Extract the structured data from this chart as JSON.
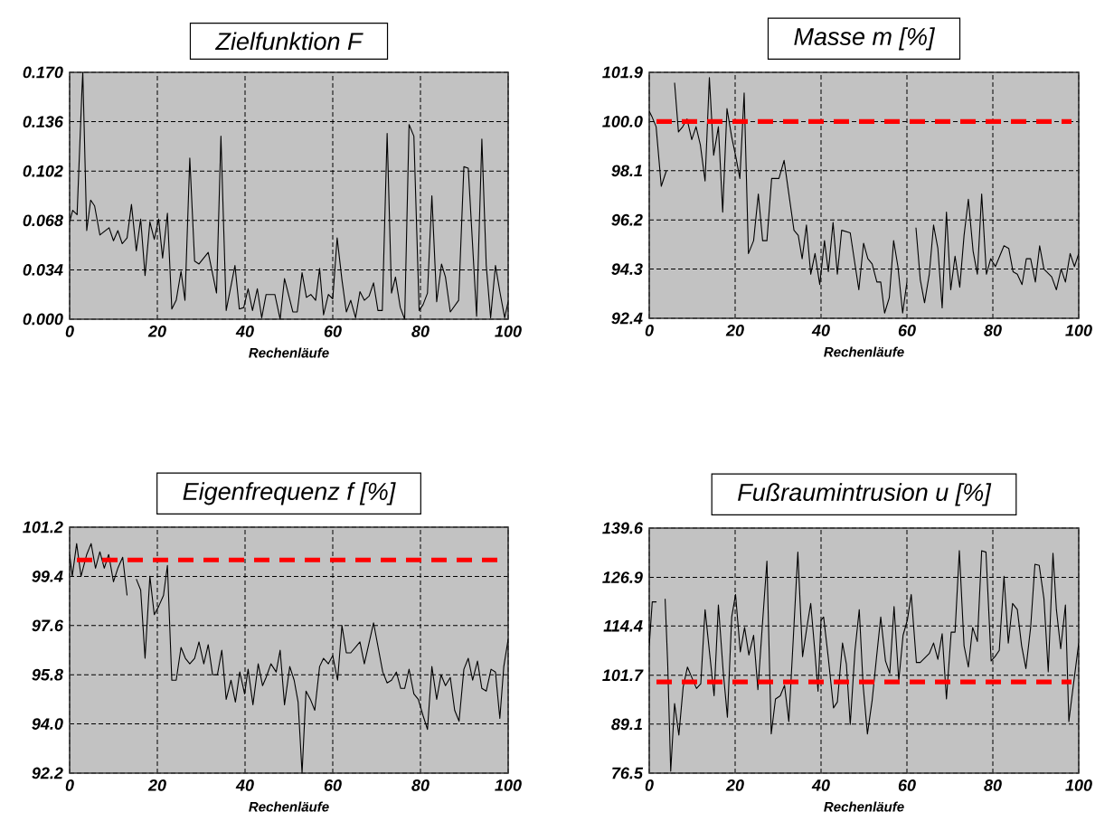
{
  "chart_data": [
    {
      "type": "line",
      "title": "Zielfunktion F",
      "xlabel": "Rechenläufe",
      "xlim": [
        0,
        100
      ],
      "xticks": [
        0,
        20,
        40,
        60,
        80,
        100
      ],
      "ylim": [
        0,
        0.17
      ],
      "yticks": [
        {
          "value": 0,
          "label": "0.000"
        },
        {
          "value": 0.034,
          "label": "0.034"
        },
        {
          "value": 0.068,
          "label": "0.068"
        },
        {
          "value": 0.102,
          "label": "0.102"
        },
        {
          "value": 0.136,
          "label": "0.136"
        },
        {
          "value": 0.17,
          "label": "0.170"
        }
      ],
      "grid": true,
      "marker": "none",
      "x": [
        0,
        0.7,
        1.7,
        2.8,
        3,
        3.3,
        3.9,
        4.8,
        5.7,
        6.9,
        9,
        10,
        11,
        12,
        13.1,
        14.1,
        15.2,
        16.2,
        17.2,
        18.3,
        19.3,
        20.3,
        21.2,
        22.3,
        23.3,
        24.3,
        25.4,
        26.3,
        27.4,
        28.5,
        29.5,
        31.6,
        33.5,
        34.5,
        35.7,
        37.7,
        38.7,
        39.7,
        40.7,
        41.7,
        42.8,
        43.8,
        44.8,
        46.8,
        48,
        49,
        50.9,
        51.9,
        53,
        54,
        55,
        56.1,
        57,
        57.9,
        59,
        60,
        61,
        62.1,
        63.1,
        64.1,
        65.2,
        66.2,
        67.2,
        68.3,
        69.3,
        70.3,
        71.3,
        72.4,
        73.4,
        74.3,
        75.4,
        76.4,
        77.4,
        78.5,
        79.7,
        80.6,
        81.6,
        82.6,
        83.7,
        84.8,
        85.7,
        86.8,
        88.7,
        89.9,
        90.9,
        92.8,
        94,
        95,
        96,
        97.1,
        98.1,
        99.2,
        100
      ],
      "series": [
        {
          "color": "#000000",
          "values": [
            0.067,
            0.075,
            0.072,
            0.157,
            0.17,
            0.134,
            0.061,
            0.082,
            0.078,
            0.058,
            0.063,
            0.054,
            0.061,
            0.052,
            0.056,
            0.079,
            0.047,
            0.069,
            0.03,
            0.067,
            0.055,
            0.069,
            0.042,
            0.073,
            0.007,
            0.013,
            0.033,
            0.013,
            0.111,
            0.04,
            0.038,
            0.046,
            0.018,
            0.126,
            0.006,
            0.037,
            0.007,
            0.008,
            0.021,
            0.006,
            0.021,
            0.001,
            0.017,
            0.017,
            0.0,
            0.028,
            0.005,
            0.005,
            0.032,
            0.015,
            0.017,
            0.013,
            0.035,
            0.003,
            0.017,
            0.014,
            0.056,
            0.027,
            0.005,
            0.013,
            0.001,
            0.019,
            0.013,
            0.016,
            0.025,
            0.006,
            0.006,
            0.128,
            0.018,
            0.029,
            0.008,
            0.0,
            0.134,
            0.126,
            0.006,
            0.01,
            0.018,
            0.085,
            0.012,
            0.038,
            0.029,
            0.005,
            0.013,
            0.105,
            0.104,
            0.002,
            0.124,
            0.037,
            0.001,
            0.037,
            0.019,
            0.001,
            0.012
          ]
        }
      ]
    },
    {
      "type": "line",
      "title": "Masse m [%]",
      "xlabel": "Rechenläufe",
      "xlim": [
        0,
        100
      ],
      "xticks": [
        0,
        20,
        40,
        60,
        80,
        100
      ],
      "ylim": [
        92.4,
        101.9
      ],
      "yticks": [
        {
          "value": 92.4,
          "label": "92.4"
        },
        {
          "value": 94.3,
          "label": "94.3"
        },
        {
          "value": 96.2,
          "label": "96.2"
        },
        {
          "value": 98.1,
          "label": "98.1"
        },
        {
          "value": 100,
          "label": "100.0"
        },
        {
          "value": 101.9,
          "label": "101.9"
        }
      ],
      "grid": true,
      "marker": "none",
      "ref_lines": [
        {
          "axis": "y",
          "value": 100,
          "color": "#ff0000",
          "line_style": "dashed"
        }
      ],
      "x": [
        0,
        0.6,
        1.6,
        2.8,
        4,
        5,
        5.9,
        6.8,
        7.8,
        8.8,
        9.9,
        10.9,
        11.9,
        13,
        14,
        15,
        16.1,
        17.1,
        18.1,
        19.2,
        20.2,
        21.1,
        22.1,
        23.1,
        24.3,
        25.4,
        26.4,
        27.4,
        28.5,
        30.2,
        31.4,
        33.7,
        34.7,
        35.6,
        36.6,
        37.6,
        38.6,
        39.7,
        40.8,
        41.7,
        42.8,
        43.8,
        44.8,
        46.8,
        48.8,
        49.9,
        50.9,
        51.9,
        53,
        53.9,
        54.8,
        55.9,
        56.9,
        57.9,
        59,
        60,
        61,
        62.1,
        63.1,
        64.1,
        65.2,
        66.2,
        67.2,
        68.2,
        69.2,
        70.2,
        71.2,
        72.3,
        73.3,
        74.3,
        75.4,
        76.4,
        77.4,
        78.5,
        79.5,
        80.6,
        82.6,
        83.7,
        84.7,
        85.7,
        86.8,
        87.8,
        88.8,
        89.9,
        90.9,
        91.9,
        93.7,
        94.8,
        95.9,
        96.9,
        98,
        99,
        100
      ],
      "series": [
        {
          "color": "#000000",
          "values": [
            100.4,
            100.2,
            99.8,
            97.5,
            98.1,
            null,
            101.5,
            99.6,
            99.8,
            100.1,
            99.3,
            99.8,
            99.1,
            97.7,
            101.7,
            98.7,
            99.8,
            96.5,
            100.5,
            99.4,
            98.6,
            97.8,
            101.1,
            94.9,
            95.4,
            97.2,
            95.4,
            95.4,
            97.8,
            97.8,
            98.5,
            95.8,
            95.6,
            94.7,
            96.0,
            94.1,
            94.9,
            93.7,
            95.4,
            94.2,
            96.1,
            94.1,
            95.8,
            95.7,
            93.5,
            95.3,
            94.7,
            94.5,
            93.8,
            93.8,
            92.6,
            93.2,
            95.4,
            94.4,
            92.6,
            93.8,
            null,
            95.9,
            93.9,
            93.0,
            94.1,
            96.0,
            95.1,
            92.8,
            96.5,
            93.5,
            94.8,
            93.6,
            95.6,
            97.0,
            95.0,
            94.1,
            97.2,
            94.1,
            94.7,
            94.4,
            95.2,
            95.1,
            94.2,
            94.1,
            93.7,
            94.7,
            94.7,
            93.8,
            95.2,
            94.3,
            94.0,
            93.5,
            94.3,
            93.8,
            94.9,
            94.4,
            94.9
          ]
        }
      ]
    },
    {
      "type": "line",
      "title": "Eigenfrequenz f [%]",
      "xlabel": "Rechenläufe",
      "xlim": [
        0,
        100
      ],
      "xticks": [
        0,
        20,
        40,
        60,
        80,
        100
      ],
      "ylim": [
        92.2,
        101.2
      ],
      "yticks": [
        {
          "value": 92.2,
          "label": "92.2"
        },
        {
          "value": 94,
          "label": "94.0"
        },
        {
          "value": 95.8,
          "label": "95.8"
        },
        {
          "value": 97.6,
          "label": "97.6"
        },
        {
          "value": 99.4,
          "label": "99.4"
        },
        {
          "value": 101.2,
          "label": "101.2"
        }
      ],
      "grid": true,
      "marker": "none",
      "ref_lines": [
        {
          "axis": "y",
          "value": 100,
          "color": "#ff0000",
          "line_style": "dashed"
        }
      ],
      "x": [
        0,
        0.6,
        1.6,
        2.6,
        3.9,
        4.9,
        5.9,
        6.9,
        7.9,
        8.9,
        10,
        11,
        12.1,
        13.1,
        14,
        15.2,
        16.2,
        17.2,
        18.3,
        19.3,
        20.3,
        21.4,
        22.3,
        23.3,
        24.3,
        25.4,
        26.4,
        27.4,
        28.5,
        29.5,
        30.6,
        31.6,
        32.6,
        33.7,
        34.7,
        35.7,
        36.8,
        37.8,
        38.8,
        39.9,
        40.7,
        41.8,
        43,
        44,
        44.8,
        45.9,
        47.1,
        48,
        49,
        50.2,
        51.2,
        52.1,
        53,
        53.9,
        54.9,
        55.9,
        57,
        57.9,
        59,
        60,
        61.1,
        62.1,
        63.1,
        64.1,
        66.2,
        67.2,
        69.3,
        71.4,
        72.4,
        73.4,
        74.5,
        75.5,
        76.4,
        77.4,
        78.5,
        79.5,
        80.6,
        81.6,
        82.6,
        83.7,
        84.7,
        85.7,
        86.8,
        87.8,
        88.8,
        89.9,
        90.9,
        91.9,
        93,
        94,
        95,
        96.1,
        97.1,
        98.1,
        99,
        100
      ],
      "series": [
        {
          "color": "#000000",
          "values": [
            100.2,
            99.4,
            100.6,
            99.4,
            100.2,
            100.6,
            99.7,
            100.3,
            99.7,
            100.2,
            99.2,
            99.7,
            100.1,
            98.7,
            null,
            99.3,
            98.9,
            96.4,
            99.4,
            98.0,
            98.3,
            98.7,
            99.8,
            95.6,
            95.6,
            96.8,
            96.4,
            96.2,
            96.4,
            97.0,
            96.2,
            96.9,
            95.8,
            95.8,
            96.7,
            94.9,
            95.6,
            94.8,
            95.9,
            95.1,
            96.0,
            94.7,
            96.2,
            95.4,
            95.7,
            96.2,
            95.9,
            96.7,
            94.7,
            96.1,
            95.6,
            94.8,
            92.2,
            95.2,
            94.9,
            94.5,
            96.1,
            96.4,
            96.2,
            96.5,
            95.6,
            97.6,
            96.6,
            96.6,
            97.0,
            96.2,
            97.7,
            95.9,
            95.5,
            95.6,
            95.9,
            95.3,
            95.3,
            96.0,
            95.1,
            94.9,
            94.3,
            93.8,
            96.1,
            94.9,
            95.8,
            95.4,
            95.7,
            94.5,
            94.1,
            96.0,
            96.4,
            95.6,
            96.3,
            95.3,
            95.2,
            96.0,
            95.9,
            94.2,
            96.1,
            97.1
          ]
        }
      ]
    },
    {
      "type": "line",
      "title": "Fußraumintrusion u [%]",
      "xlabel": "Rechenläufe",
      "xlim": [
        0,
        100
      ],
      "xticks": [
        0,
        20,
        40,
        60,
        80,
        100
      ],
      "ylim": [
        76.5,
        139.6
      ],
      "yticks": [
        {
          "value": 76.5,
          "label": "76.5"
        },
        {
          "value": 89.1,
          "label": "89.1"
        },
        {
          "value": 101.7,
          "label": "101.7"
        },
        {
          "value": 114.4,
          "label": "114.4"
        },
        {
          "value": 126.9,
          "label": "126.9"
        },
        {
          "value": 139.6,
          "label": "139.6"
        }
      ],
      "grid": true,
      "marker": "none",
      "ref_lines": [
        {
          "axis": "y",
          "value": 100,
          "color": "#ff0000",
          "line_style": "dashed"
        }
      ],
      "x": [
        0,
        0.7,
        1.7,
        2.7,
        3.7,
        4.3,
        5,
        5.9,
        6.9,
        7.9,
        8.9,
        11,
        12,
        13,
        14.1,
        15.1,
        16.1,
        17.2,
        18.2,
        19.2,
        20.1,
        21.2,
        22.2,
        23.2,
        24.3,
        25.3,
        26.3,
        27.4,
        28.4,
        29.4,
        30.5,
        31.5,
        32.5,
        33.6,
        34.6,
        35.7,
        36.7,
        37.6,
        38.6,
        39.3,
        40,
        40.6,
        41.7,
        42.9,
        43.8,
        45,
        45.9,
        46.8,
        47.9,
        48.9,
        49.8,
        50.8,
        51.9,
        52.9,
        53.9,
        55,
        56,
        57,
        58.1,
        59.1,
        60.1,
        61,
        62.2,
        63.1,
        65.2,
        66.2,
        67.2,
        68.2,
        69.2,
        70.3,
        71.2,
        72.2,
        73.3,
        74.3,
        75.3,
        76.4,
        77.4,
        78.4,
        79.6,
        80.5,
        81.5,
        82.6,
        83.6,
        84.6,
        85.7,
        86.7,
        87.7,
        88.8,
        89.8,
        90.8,
        91.9,
        92.9,
        94,
        94.8,
        95.8,
        96.9,
        97.7,
        98.5,
        100
      ],
      "series": [
        {
          "color": "#000000",
          "values": [
            109.3,
            120.6,
            120.6,
            null,
            121.4,
            104.6,
            77.0,
            94.4,
            86.3,
            98.7,
            103.8,
            98.3,
            99.5,
            118.6,
            106.9,
            96.4,
            119.8,
            103.0,
            90.9,
            116.7,
            122.5,
            107.7,
            114.0,
            106.9,
            112.0,
            98.0,
            114.0,
            131.1,
            86.6,
            95.6,
            96.4,
            99.1,
            89.8,
            112.4,
            133.4,
            106.5,
            114.0,
            120.2,
            107.3,
            97.6,
            115.9,
            116.7,
            106.1,
            93.3,
            94.8,
            110.0,
            104.6,
            89.0,
            108.1,
            118.6,
            99.1,
            86.6,
            95.2,
            106.1,
            116.7,
            105.4,
            102.2,
            119.4,
            100.3,
            112.0,
            115.9,
            122.5,
            105.0,
            105.0,
            107.3,
            110.0,
            105.8,
            112.4,
            95.6,
            112.8,
            112.8,
            133.8,
            109.3,
            103.8,
            114.0,
            110.4,
            133.8,
            133.4,
            105.4,
            106.5,
            108.1,
            127.2,
            110.0,
            120.2,
            118.6,
            109.3,
            103.4,
            114.0,
            130.3,
            130.0,
            121.4,
            102.6,
            133.1,
            118.6,
            108.5,
            119.8,
            89.8,
            97.0,
            110.0
          ]
        }
      ]
    }
  ]
}
